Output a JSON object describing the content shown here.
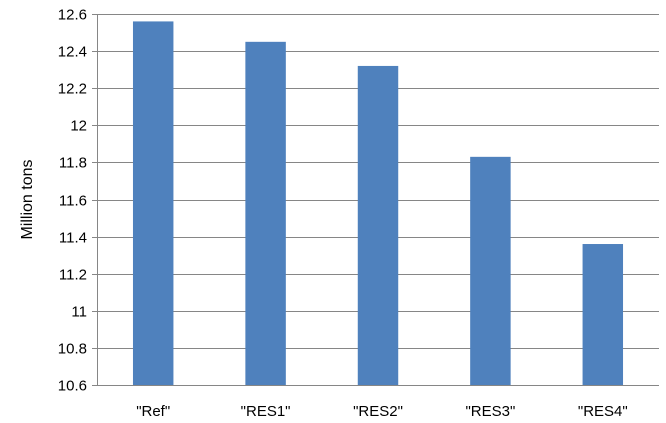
{
  "chart_data": {
    "type": "bar",
    "title": "",
    "xlabel": "",
    "ylabel": "Million tons",
    "categories": [
      "\"Ref\"",
      "\"RES1\"",
      "\"RES2\"",
      "\"RES3\"",
      "\"RES4\""
    ],
    "series": [
      {
        "values": [
          12.56,
          12.45,
          12.32,
          11.83,
          11.36
        ]
      }
    ],
    "ylim": [
      10.6,
      12.6
    ],
    "yticks": [
      10.6,
      10.8,
      11,
      11.2,
      11.4,
      11.6,
      11.8,
      12,
      12.2,
      12.4,
      12.6
    ],
    "grid": true,
    "legend": "none",
    "colors": {
      "bar": "#4F81BD",
      "grid": "#868686",
      "axis": "#868686"
    }
  }
}
